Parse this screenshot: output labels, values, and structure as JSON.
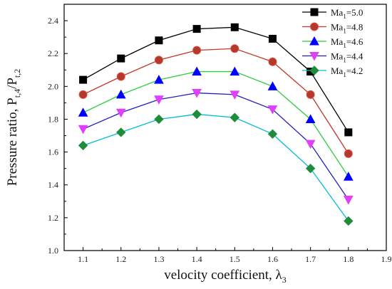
{
  "chart_data": {
    "type": "line",
    "title": "",
    "xlabel": "velocity coefficient,  λ",
    "xlabel_sub": "3",
    "ylabel": "Pressure ratio, P",
    "ylabel_sub1": "t,4",
    "ylabel_mid": "/P",
    "ylabel_sub2": "t,2",
    "xlim": [
      1.05,
      1.9
    ],
    "ylim": [
      1.0,
      2.5
    ],
    "xticks": [
      1.1,
      1.2,
      1.3,
      1.4,
      1.5,
      1.6,
      1.7,
      1.8,
      1.9
    ],
    "yticks": [
      1.0,
      1.2,
      1.4,
      1.6,
      1.8,
      2.0,
      2.2,
      2.4
    ],
    "x": [
      1.1,
      1.2,
      1.3,
      1.4,
      1.5,
      1.6,
      1.7,
      1.8
    ],
    "legend_position": "top-right",
    "grid": false,
    "series": [
      {
        "name": "Ma",
        "name_sub": "1",
        "name_suffix": "=5.0",
        "marker": "square",
        "color": "#000000",
        "fill": "#000000",
        "values": [
          2.04,
          2.17,
          2.28,
          2.35,
          2.36,
          2.29,
          2.09,
          1.72
        ]
      },
      {
        "name": "Ma",
        "name_sub": "1",
        "name_suffix": "=4.8",
        "marker": "circle",
        "color": "#c0392b",
        "fill": "#b03a2e",
        "values": [
          1.95,
          2.06,
          2.16,
          2.22,
          2.23,
          2.15,
          1.95,
          1.59
        ]
      },
      {
        "name": "Ma",
        "name_sub": "1",
        "name_suffix": "=4.6",
        "marker": "triangle-up",
        "color": "#2ecc40",
        "fill": "#0000ff",
        "values": [
          1.84,
          1.95,
          2.04,
          2.09,
          2.09,
          2.0,
          1.8,
          1.45
        ]
      },
      {
        "name": "Ma",
        "name_sub": "1",
        "name_suffix": "=4.4",
        "marker": "triangle-down",
        "color": "#2020c0",
        "fill": "#e040fb",
        "values": [
          1.74,
          1.84,
          1.92,
          1.96,
          1.95,
          1.86,
          1.65,
          1.31
        ]
      },
      {
        "name": "Ma",
        "name_sub": "1",
        "name_suffix": "=4.2",
        "marker": "diamond",
        "color": "#00bcd4",
        "fill": "#1e8c3a",
        "values": [
          1.64,
          1.72,
          1.8,
          1.83,
          1.81,
          1.71,
          1.5,
          1.18
        ]
      }
    ]
  }
}
